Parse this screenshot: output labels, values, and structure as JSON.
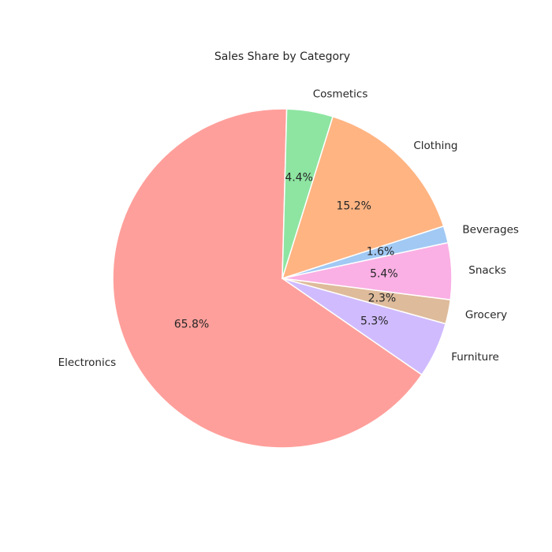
{
  "chart_data": {
    "type": "pie",
    "title": "Sales Share by Category",
    "start_angle_deg": 88.5,
    "direction": "counterclockwise",
    "slices": [
      {
        "label": "Electronics",
        "value": 65.8,
        "pct_label": "65.8%",
        "color": "#ff9f9b"
      },
      {
        "label": "Furniture",
        "value": 5.3,
        "pct_label": "5.3%",
        "color": "#d0bbff"
      },
      {
        "label": "Grocery",
        "value": 2.3,
        "pct_label": "2.3%",
        "color": "#debb9b"
      },
      {
        "label": "Snacks",
        "value": 5.4,
        "pct_label": "5.4%",
        "color": "#fab0e4"
      },
      {
        "label": "Beverages",
        "value": 1.6,
        "pct_label": "1.6%",
        "color": "#a1c9f4"
      },
      {
        "label": "Clothing",
        "value": 15.2,
        "pct_label": "15.2%",
        "color": "#ffb482"
      },
      {
        "label": "Cosmetics",
        "value": 4.4,
        "pct_label": "4.4%",
        "color": "#8de5a1"
      }
    ]
  }
}
